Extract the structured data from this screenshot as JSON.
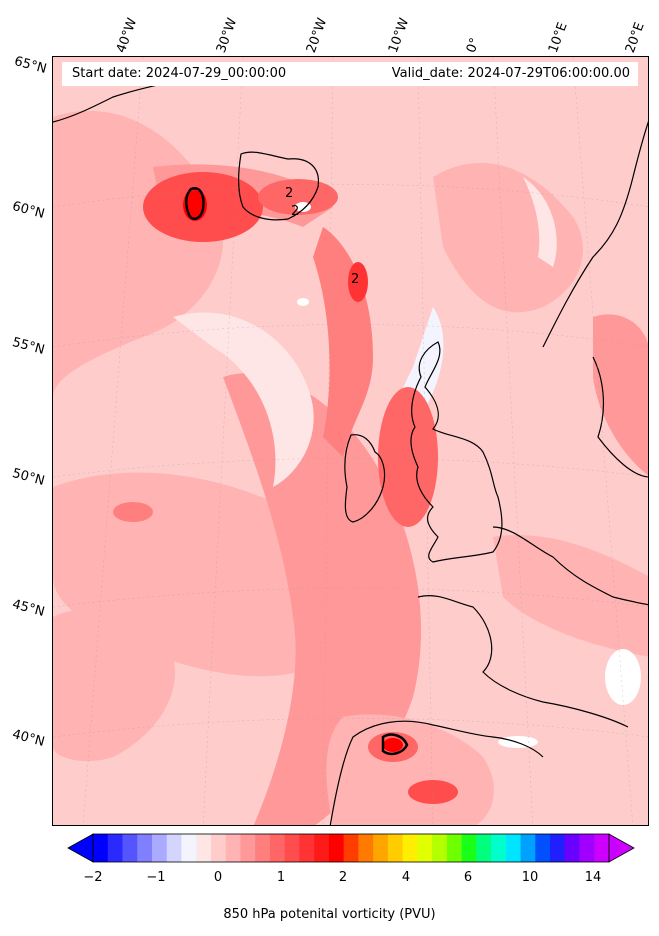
{
  "header": {
    "start_date": "Start date: 2024-07-29_00:00:00",
    "valid_date": "Valid_date: 2024-07-29T06:00:00.00"
  },
  "lon_labels": [
    "40°W",
    "30°W",
    "20°W",
    "10°W",
    "0°",
    "10°E",
    "20°E"
  ],
  "lat_labels": [
    "65°N",
    "60°N",
    "55°N",
    "50°N",
    "45°N",
    "40°N"
  ],
  "contour_labels": [
    "2",
    "2",
    "2"
  ],
  "colorbar": {
    "ticks": [
      "−2",
      "−1",
      "0",
      "1",
      "2",
      "4",
      "6",
      "10",
      "14"
    ],
    "label": "850 hPa potenital vorticity (PVU)",
    "colors": [
      "#0000ff",
      "#2a2aff",
      "#5555ff",
      "#7f7fff",
      "#aaaaff",
      "#d4d4ff",
      "#f4f4ff",
      "#ffe6e6",
      "#ffcccc",
      "#ffb3b3",
      "#ff9999",
      "#ff7f7f",
      "#ff6666",
      "#ff4c4c",
      "#ff3333",
      "#ff1a1a",
      "#ff0000",
      "#ff3d00",
      "#ff7a00",
      "#ffa500",
      "#ffcc00",
      "#ffee00",
      "#e0ff00",
      "#b4ff00",
      "#6eff00",
      "#1aff1a",
      "#00ff7f",
      "#00ffcc",
      "#00e5ff",
      "#00a0ff",
      "#0050ff",
      "#2020ff",
      "#6a00ff",
      "#a000ff",
      "#cc00ff"
    ]
  }
}
